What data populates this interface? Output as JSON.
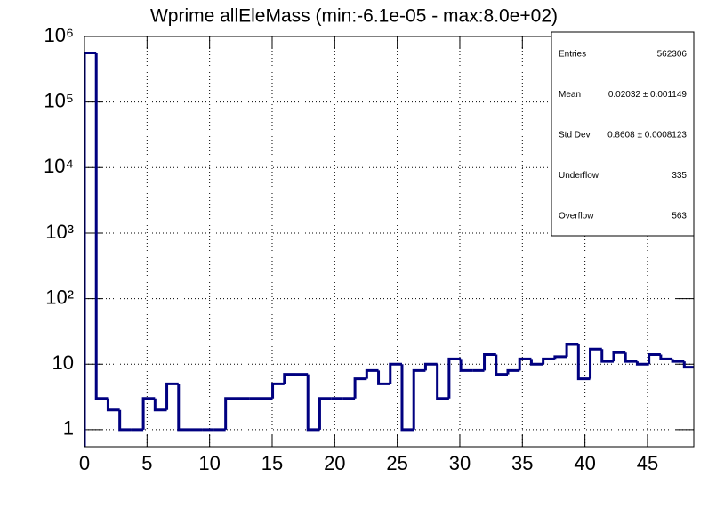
{
  "chart_data": {
    "type": "histogram",
    "title": "Wprime allEleMass (min:-6.1e-05 - max:8.0e+02)",
    "bins": [
      0,
      0.94,
      1.88,
      2.82,
      3.76,
      4.7,
      5.64,
      6.58,
      7.52,
      8.46,
      9.4,
      10.34,
      11.28,
      12.22,
      13.16,
      14.1,
      15.04,
      15.98,
      16.92,
      17.86,
      18.8,
      19.74,
      20.68,
      21.62,
      22.56,
      23.5,
      24.44,
      25.38,
      26.32,
      27.26,
      28.2,
      29.14,
      30.08,
      31.02,
      31.96,
      32.9,
      33.84,
      34.78,
      35.72,
      36.66,
      37.6,
      38.54,
      39.48,
      40.42,
      41.36,
      42.3,
      43.24,
      44.18,
      45.12,
      46.06,
      47.0,
      47.94,
      48.88
    ],
    "values": [
      560000,
      3,
      2,
      1,
      1,
      3,
      2,
      5,
      1,
      1,
      1,
      1,
      3,
      3,
      3,
      3,
      5,
      7,
      7,
      1,
      3,
      3,
      3,
      6,
      8,
      5,
      10,
      1,
      8,
      10,
      3,
      12,
      8,
      8,
      14,
      7,
      8,
      12,
      10,
      12,
      13,
      20,
      6,
      17,
      11,
      15,
      11,
      10,
      14,
      12,
      11,
      9
    ],
    "color": "#000080",
    "xlim": [
      0,
      48.7
    ],
    "xticks": [
      0,
      5,
      10,
      15,
      20,
      25,
      30,
      35,
      40,
      45
    ],
    "ylim": [
      0.55,
      1000000
    ],
    "log_y": true,
    "yticks": [
      1,
      10,
      {
        "value": 100,
        "label": "10²"
      },
      {
        "value": 1000,
        "label": "10³"
      },
      {
        "value": 10000,
        "label": "10⁴"
      },
      {
        "value": 100000,
        "label": "10⁵"
      },
      {
        "value": 1000000,
        "label": "10⁶"
      }
    ],
    "grid": true,
    "stats": [
      {
        "label": "Entries",
        "value": "562306"
      },
      {
        "label": "Mean",
        "value": "0.02032 ± 0.001149"
      },
      {
        "label": "Std Dev",
        "value": "0.8608 ± 0.0008123"
      },
      {
        "label": "Underflow",
        "value": "335"
      },
      {
        "label": "Overflow",
        "value": "563"
      }
    ]
  }
}
